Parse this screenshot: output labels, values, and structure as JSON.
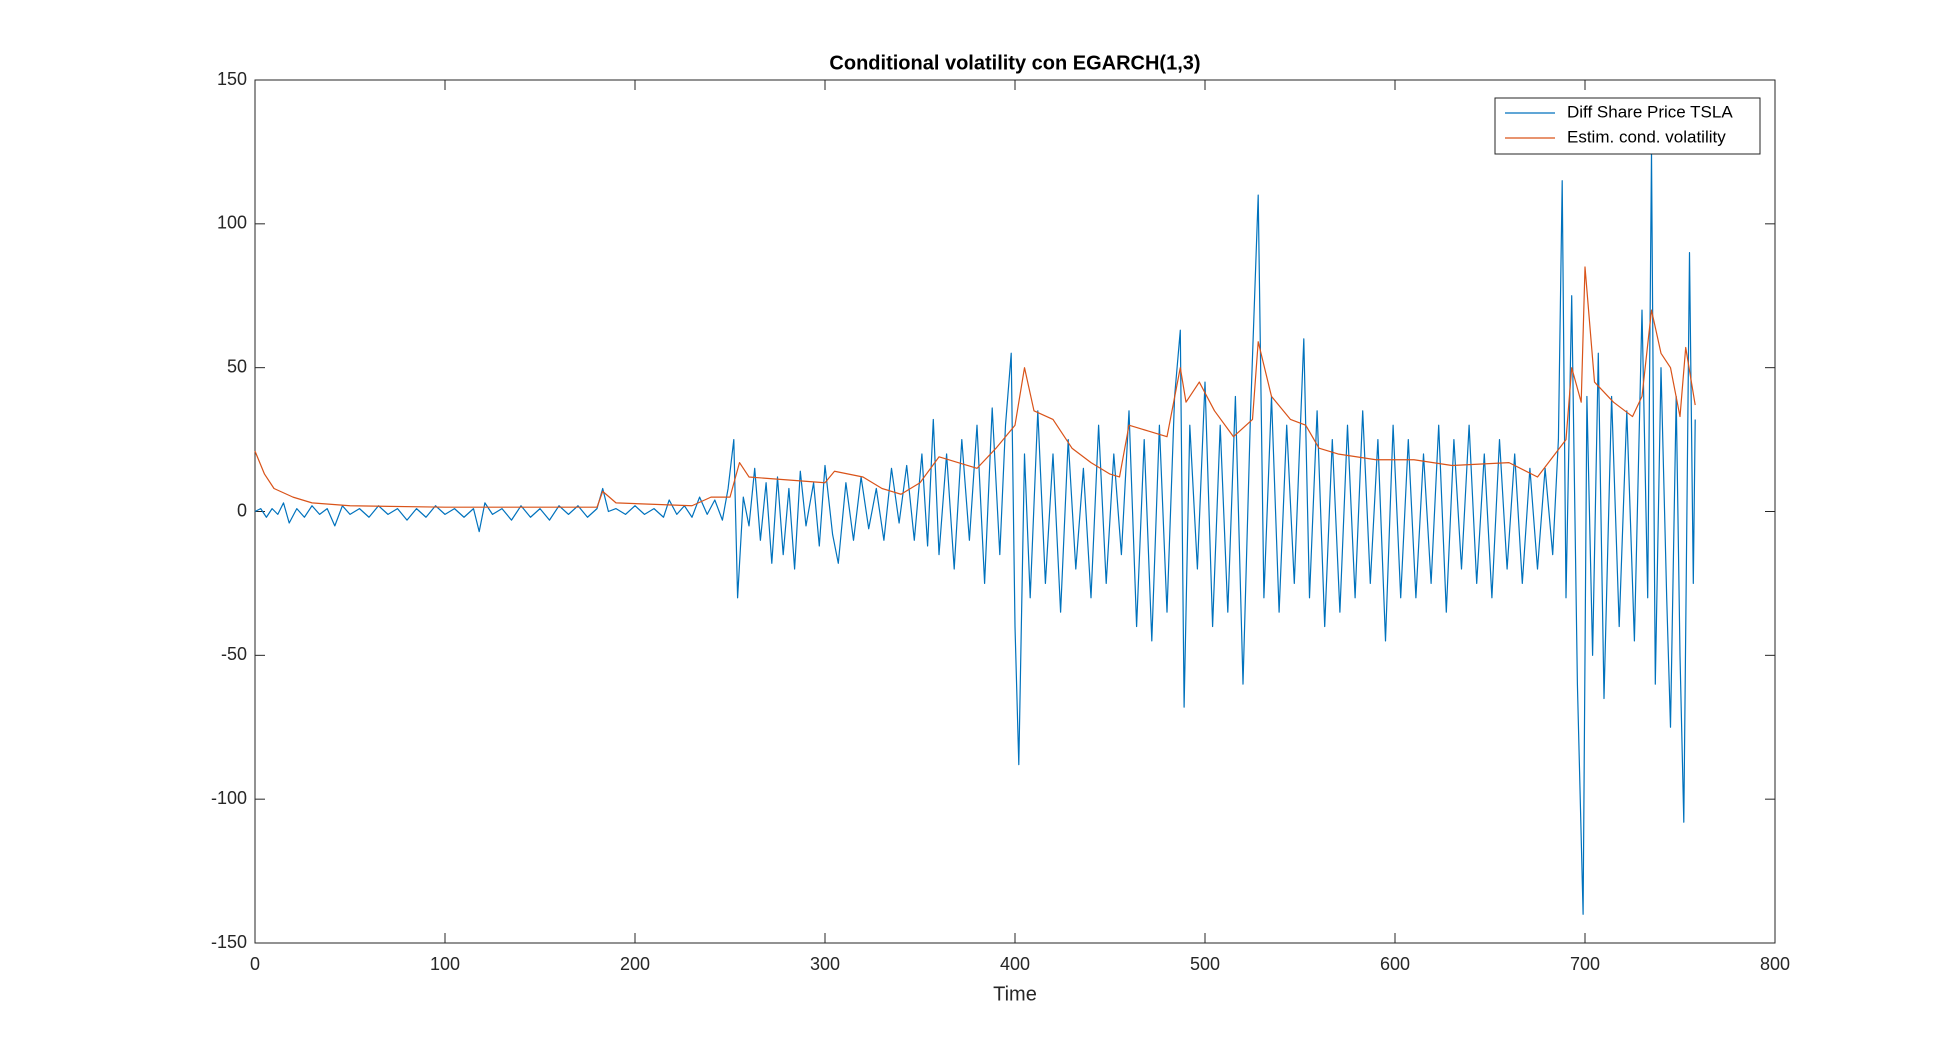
{
  "chart_data": {
    "type": "line",
    "title": "Conditional volatility con EGARCH(1,3)",
    "x_label": "Time",
    "xlim": [
      0,
      800
    ],
    "xticks": [
      0,
      100,
      200,
      300,
      400,
      500,
      600,
      700,
      800
    ],
    "ylim": [
      -150,
      150
    ],
    "yticks": [
      -150,
      -100,
      -50,
      0,
      50,
      100,
      150
    ],
    "legend": "northeast",
    "series": [
      {
        "name": "Diff Share Price TSLA",
        "color": "#0072bd",
        "x": [
          0,
          3,
          6,
          9,
          12,
          15,
          18,
          22,
          26,
          30,
          34,
          38,
          42,
          46,
          50,
          55,
          60,
          65,
          70,
          75,
          80,
          85,
          90,
          95,
          100,
          105,
          110,
          115,
          118,
          121,
          125,
          130,
          135,
          140,
          145,
          150,
          155,
          160,
          165,
          170,
          175,
          180,
          183,
          186,
          190,
          195,
          200,
          205,
          210,
          215,
          218,
          222,
          226,
          230,
          234,
          238,
          242,
          246,
          249,
          252,
          254,
          257,
          260,
          263,
          266,
          269,
          272,
          275,
          278,
          281,
          284,
          287,
          290,
          294,
          297,
          300,
          304,
          307,
          311,
          315,
          319,
          323,
          327,
          331,
          335,
          339,
          343,
          347,
          351,
          354,
          357,
          360,
          364,
          368,
          372,
          376,
          380,
          384,
          388,
          392,
          395,
          398,
          400,
          402,
          405,
          408,
          412,
          416,
          420,
          424,
          428,
          432,
          436,
          440,
          444,
          448,
          452,
          456,
          460,
          464,
          468,
          472,
          476,
          480,
          484,
          487,
          489,
          492,
          496,
          500,
          504,
          508,
          512,
          516,
          520,
          524,
          528,
          531,
          535,
          539,
          543,
          547,
          552,
          555,
          559,
          563,
          567,
          571,
          575,
          579,
          583,
          587,
          591,
          595,
          599,
          603,
          607,
          611,
          615,
          619,
          623,
          627,
          631,
          635,
          639,
          643,
          647,
          651,
          655,
          659,
          663,
          667,
          671,
          675,
          679,
          683,
          686,
          688,
          690,
          693,
          696,
          699,
          701,
          704,
          707,
          710,
          714,
          718,
          722,
          726,
          730,
          733,
          735,
          737,
          740,
          743,
          745,
          748,
          750,
          752,
          755,
          757,
          758
        ],
        "values": [
          0,
          1,
          -2,
          1,
          -1,
          3,
          -4,
          1,
          -2,
          2,
          -1,
          1,
          -5,
          2,
          -1,
          1,
          -2,
          2,
          -1,
          1,
          -3,
          1,
          -2,
          2,
          -1,
          1,
          -2,
          1,
          -7,
          3,
          -1,
          1,
          -3,
          2,
          -2,
          1,
          -3,
          2,
          -1,
          2,
          -2,
          1,
          8,
          0,
          1,
          -1,
          2,
          -1,
          1,
          -2,
          4,
          -1,
          2,
          -2,
          5,
          -1,
          4,
          -3,
          8,
          25,
          -30,
          5,
          -5,
          15,
          -10,
          10,
          -18,
          12,
          -15,
          8,
          -20,
          14,
          -5,
          10,
          -12,
          16,
          -8,
          -18,
          10,
          -10,
          12,
          -6,
          8,
          -10,
          15,
          -4,
          16,
          -10,
          20,
          -12,
          32,
          -15,
          20,
          -20,
          25,
          -10,
          30,
          -25,
          36,
          -15,
          30,
          55,
          -40,
          -88,
          20,
          -30,
          35,
          -25,
          20,
          -35,
          25,
          -20,
          15,
          -30,
          30,
          -25,
          20,
          -15,
          35,
          -40,
          25,
          -45,
          30,
          -35,
          40,
          63,
          -68,
          30,
          -20,
          45,
          -40,
          30,
          -35,
          40,
          -60,
          35,
          110,
          -30,
          40,
          -35,
          30,
          -25,
          60,
          -30,
          35,
          -40,
          25,
          -35,
          30,
          -30,
          35,
          -25,
          25,
          -45,
          30,
          -30,
          25,
          -30,
          20,
          -25,
          30,
          -35,
          25,
          -20,
          30,
          -25,
          20,
          -30,
          25,
          -20,
          20,
          -25,
          15,
          -20,
          15,
          -15,
          25,
          115,
          -30,
          75,
          -60,
          -140,
          40,
          -50,
          55,
          -65,
          40,
          -40,
          35,
          -45,
          70,
          -30,
          125,
          -60,
          50,
          -30,
          -75,
          40,
          -50,
          -108,
          90,
          -25,
          32
        ]
      },
      {
        "name": "Estim. cond. volatility",
        "color": "#d95319",
        "x": [
          0,
          5,
          10,
          20,
          30,
          50,
          100,
          180,
          183,
          190,
          230,
          240,
          250,
          255,
          260,
          280,
          300,
          305,
          320,
          330,
          340,
          350,
          360,
          380,
          390,
          400,
          405,
          410,
          420,
          430,
          440,
          450,
          455,
          460,
          470,
          480,
          487,
          490,
          497,
          505,
          515,
          525,
          528,
          535,
          545,
          553,
          560,
          570,
          590,
          610,
          630,
          660,
          675,
          690,
          693,
          698,
          700,
          705,
          715,
          725,
          730,
          735,
          740,
          745,
          750,
          753,
          758
        ],
        "values": [
          21,
          13,
          8,
          5,
          3,
          2,
          1.5,
          1.5,
          7,
          3,
          2,
          5,
          5,
          17,
          12,
          11,
          10,
          14,
          12,
          8,
          6,
          10,
          19,
          15,
          22,
          30,
          50,
          35,
          32,
          22,
          17,
          13,
          12,
          30,
          28,
          26,
          50,
          38,
          45,
          35,
          26,
          32,
          59,
          40,
          32,
          30,
          22,
          20,
          18,
          18,
          16,
          17,
          12,
          25,
          50,
          38,
          85,
          45,
          38,
          33,
          40,
          70,
          55,
          50,
          33,
          57,
          37
        ]
      }
    ]
  }
}
